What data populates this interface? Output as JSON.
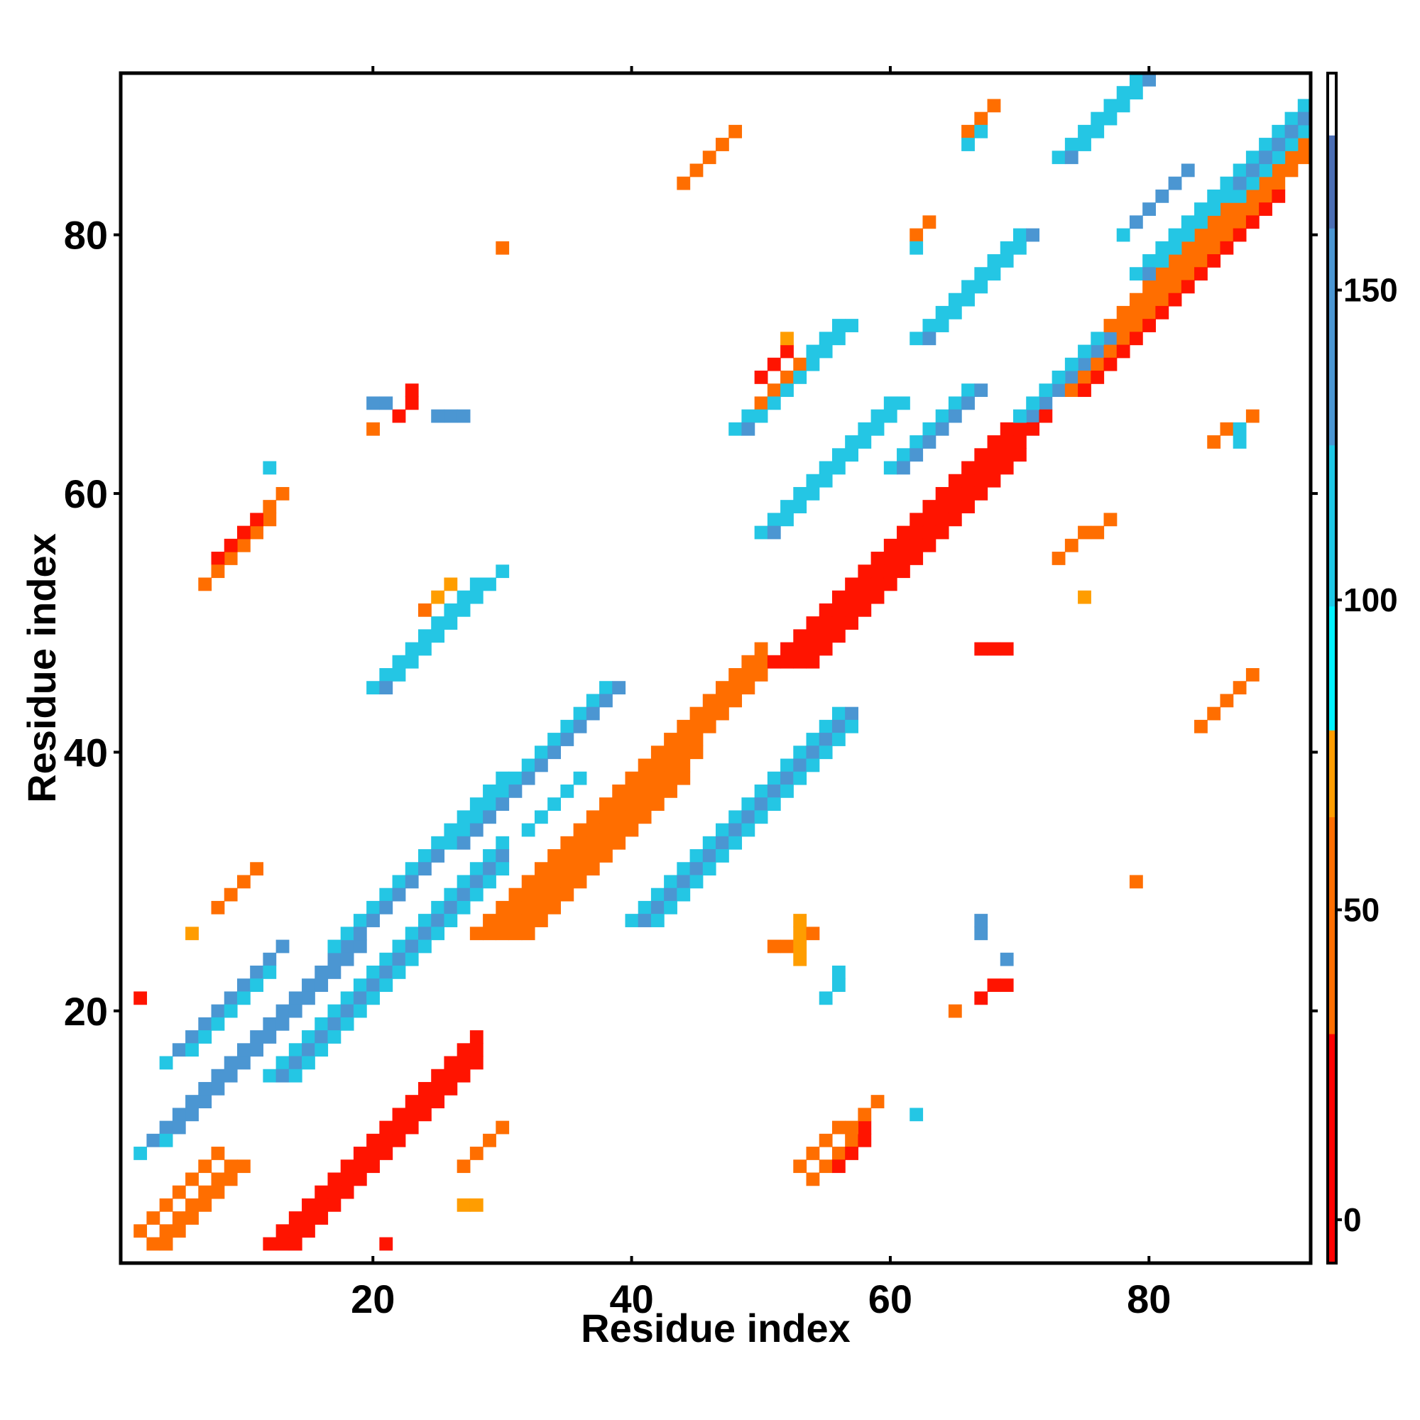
{
  "chart_data": {
    "type": "heatmap",
    "title": "",
    "xlabel": "Residue index",
    "ylabel": "Residue index",
    "xlim": [
      1,
      92
    ],
    "ylim": [
      1,
      92
    ],
    "xticks": [
      20,
      40,
      60,
      80
    ],
    "yticks": [
      20,
      40,
      60,
      80
    ],
    "grid": false,
    "colorbar": {
      "ticks": [
        0,
        50,
        100,
        150
      ],
      "range": [
        -7,
        185
      ],
      "bands": [
        {
          "from": -7,
          "to": 30,
          "color": "#ff0000"
        },
        {
          "from": 30,
          "to": 65,
          "color": "#ff6e00"
        },
        {
          "from": 65,
          "to": 79,
          "color": "#ff9d00"
        },
        {
          "from": 79,
          "to": 99,
          "color": "#00f2ff"
        },
        {
          "from": 99,
          "to": 125,
          "color": "#1ec8e6"
        },
        {
          "from": 125,
          "to": 160,
          "color": "#4b96d2"
        },
        {
          "from": 160,
          "to": 175,
          "color": "#4b6eb4"
        },
        {
          "from": 175,
          "to": 185,
          "color": "#ffffff"
        }
      ]
    },
    "class_colors": {
      "R": "#ff1400",
      "O": "#ff6e00",
      "A": "#ff9d00",
      "C": "#00f2ff",
      "S": "#24c6e4",
      "B": "#4b96d2"
    },
    "segments": [
      [
        "R",
        13,
        2,
        28,
        17
      ],
      [
        "R",
        14,
        2,
        28,
        16
      ],
      [
        "R",
        12,
        2,
        28,
        18
      ],
      [
        "O",
        3,
        2,
        9,
        8
      ],
      [
        "O",
        2,
        3,
        8,
        9
      ],
      [
        "O",
        4,
        2,
        10,
        8
      ],
      [
        "O",
        29,
        26,
        50,
        47
      ],
      [
        "O",
        28,
        26,
        50,
        48
      ],
      [
        "O",
        30,
        26,
        50,
        46
      ],
      [
        "O",
        31,
        26,
        45,
        40
      ],
      [
        "O",
        32,
        26,
        44,
        38
      ],
      [
        "R",
        52,
        47,
        72,
        67
      ],
      [
        "R",
        53,
        47,
        72,
        66
      ],
      [
        "R",
        51,
        47,
        70,
        66
      ],
      [
        "R",
        54,
        47,
        70,
        63
      ],
      [
        "O",
        73,
        68,
        92,
        87
      ],
      [
        "O",
        72,
        68,
        92,
        88
      ],
      [
        "O",
        74,
        68,
        92,
        86
      ],
      [
        "R",
        75,
        68,
        90,
        83
      ],
      [
        "S",
        2,
        9,
        18,
        25
      ],
      [
        "B",
        3,
        10,
        17,
        24
      ],
      [
        "S",
        4,
        10,
        18,
        24
      ],
      [
        "B",
        5,
        11,
        19,
        25
      ],
      [
        "S",
        12,
        15,
        30,
        33
      ],
      [
        "B",
        13,
        15,
        30,
        32
      ],
      [
        "S",
        14,
        15,
        30,
        31
      ],
      [
        "S",
        4,
        16,
        12,
        24
      ],
      [
        "B",
        5,
        17,
        13,
        25
      ],
      [
        "S",
        6,
        17,
        12,
        23
      ],
      [
        "S",
        17,
        25,
        30,
        38
      ],
      [
        "B",
        18,
        25,
        31,
        38
      ],
      [
        "S",
        26,
        33,
        38,
        45
      ],
      [
        "B",
        27,
        33,
        39,
        45
      ],
      [
        "S",
        40,
        27,
        56,
        43
      ],
      [
        "B",
        41,
        27,
        57,
        43
      ],
      [
        "S",
        42,
        27,
        57,
        42
      ],
      [
        "S",
        32,
        34,
        36,
        38
      ],
      [
        "S",
        20,
        45,
        28,
        53
      ],
      [
        "B",
        21,
        45,
        29,
        53
      ],
      [
        "S",
        22,
        46,
        30,
        54
      ],
      [
        "S",
        50,
        57,
        60,
        67
      ],
      [
        "B",
        51,
        57,
        61,
        67
      ],
      [
        "S",
        52,
        58,
        61,
        67
      ],
      [
        "S",
        60,
        62,
        66,
        68
      ],
      [
        "B",
        61,
        62,
        67,
        68
      ],
      [
        "S",
        48,
        65,
        56,
        73
      ],
      [
        "B",
        49,
        65,
        57,
        73
      ],
      [
        "S",
        50,
        66,
        57,
        73
      ],
      [
        "S",
        70,
        66,
        76,
        72
      ],
      [
        "B",
        71,
        66,
        77,
        72
      ],
      [
        "S",
        62,
        72,
        70,
        80
      ],
      [
        "B",
        63,
        72,
        71,
        80
      ],
      [
        "S",
        64,
        73,
        70,
        79
      ],
      [
        "S",
        73,
        86,
        79,
        92
      ],
      [
        "B",
        74,
        86,
        80,
        92
      ],
      [
        "S",
        75,
        87,
        79,
        91
      ],
      [
        "S",
        79,
        77,
        92,
        90
      ],
      [
        "B",
        80,
        77,
        92,
        89
      ],
      [
        "S",
        81,
        78,
        92,
        88
      ],
      [
        "S",
        78,
        80,
        82,
        84
      ],
      [
        "B",
        79,
        81,
        83,
        85
      ],
      [
        "R",
        55,
        8,
        58,
        11
      ],
      [
        "R",
        56,
        8,
        58,
        10
      ],
      [
        "O",
        54,
        7,
        57,
        10
      ],
      [
        "O",
        53,
        8,
        56,
        11
      ],
      [
        "O",
        57,
        11,
        59,
        13
      ],
      [
        "R",
        9,
        55,
        12,
        58
      ],
      [
        "R",
        8,
        55,
        11,
        58
      ],
      [
        "O",
        7,
        53,
        10,
        56
      ],
      [
        "O",
        8,
        54,
        11,
        57
      ],
      [
        "O",
        11,
        57,
        13,
        60
      ],
      [
        "O",
        84,
        42,
        87,
        45
      ],
      [
        "O",
        85,
        43,
        88,
        46
      ],
      [
        "O",
        44,
        84,
        47,
        87
      ],
      [
        "O",
        45,
        85,
        48,
        88
      ],
      [
        "O",
        73,
        55,
        77,
        58
      ],
      [
        "R",
        67,
        48,
        69,
        48
      ],
      [
        "A",
        75,
        52,
        75,
        52
      ],
      [
        "O",
        50,
        67,
        53,
        70
      ],
      [
        "R",
        50,
        69,
        52,
        71
      ],
      [
        "A",
        52,
        72,
        52,
        72
      ],
      [
        "O",
        8,
        28,
        11,
        31
      ],
      [
        "A",
        6,
        26,
        6,
        26
      ],
      [
        "O",
        27,
        8,
        30,
        11
      ],
      [
        "A",
        27,
        5,
        28,
        5
      ],
      [
        "O",
        51,
        25,
        54,
        26
      ],
      [
        "A",
        53,
        24,
        53,
        27
      ],
      [
        "S",
        55,
        21,
        56,
        23
      ],
      [
        "O",
        24,
        51,
        26,
        53
      ],
      [
        "A",
        25,
        52,
        26,
        53
      ],
      [
        "R",
        22,
        66,
        23,
        68
      ],
      [
        "B",
        20,
        67,
        21,
        67
      ],
      [
        "B",
        25,
        66,
        27,
        66
      ],
      [
        "R",
        67,
        21,
        69,
        22
      ],
      [
        "B",
        67,
        26,
        67,
        27
      ],
      [
        "B",
        69,
        24,
        69,
        24
      ],
      [
        "O",
        85,
        64,
        88,
        66
      ],
      [
        "S",
        87,
        64,
        87,
        65
      ],
      [
        "O",
        66,
        88,
        68,
        90
      ],
      [
        "S",
        66,
        87,
        67,
        88
      ],
      [
        "O",
        30,
        79,
        30,
        79
      ],
      [
        "O",
        79,
        30,
        79,
        30
      ],
      [
        "O",
        20,
        65,
        20,
        65
      ],
      [
        "O",
        65,
        20,
        65,
        20
      ],
      [
        "S",
        12,
        62,
        12,
        62
      ],
      [
        "S",
        62,
        12,
        62,
        12
      ],
      [
        "R",
        2,
        21,
        2,
        21
      ],
      [
        "R",
        21,
        2,
        21,
        2
      ],
      [
        "O",
        62,
        80,
        63,
        81
      ],
      [
        "S",
        62,
        79,
        62,
        79
      ]
    ]
  }
}
